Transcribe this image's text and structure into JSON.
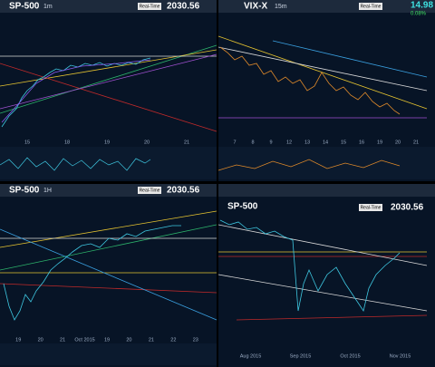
{
  "panels": [
    {
      "symbol": "SP-500",
      "interval": "1m",
      "button": "Real-Time",
      "price": "2030.56",
      "x_labels": [
        "15",
        "18",
        "19",
        "20",
        "21"
      ]
    },
    {
      "symbol": "VIX-X",
      "interval": "15m",
      "button": "Real-Time",
      "price": "14.98",
      "change": "0.08%",
      "x_labels": [
        "7",
        "8",
        "9",
        "12",
        "13",
        "14",
        "15",
        "16",
        "19",
        "20",
        "21"
      ]
    },
    {
      "symbol": "SP-500",
      "interval": "1H",
      "button": "Real-Time",
      "price": "2030.56",
      "x_labels": [
        "19",
        "20",
        "21",
        "Oct 2015",
        "19",
        "20",
        "21",
        "22",
        "23"
      ]
    },
    {
      "symbol": "SP-500",
      "interval": "",
      "button": "Real-Time",
      "price": "2030.56",
      "x_labels": [
        "Aug 2015",
        "Sep 2015",
        "Oct 2015",
        "Nov 2015"
      ]
    }
  ]
}
